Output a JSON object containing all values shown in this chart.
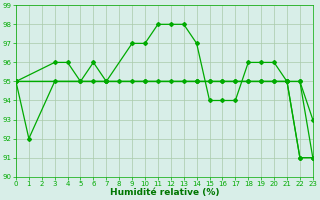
{
  "series": [
    {
      "x": [
        0,
        1,
        3,
        5,
        6,
        7,
        8,
        9,
        10,
        11,
        12,
        13,
        14,
        15,
        16,
        17,
        18,
        19,
        20,
        21,
        22,
        23
      ],
      "y": [
        95,
        92,
        95,
        95,
        95,
        95,
        95,
        95,
        95,
        95,
        95,
        95,
        95,
        95,
        95,
        95,
        95,
        95,
        95,
        95,
        91,
        91
      ]
    },
    {
      "x": [
        0,
        3,
        4,
        5,
        6,
        7,
        9,
        10,
        11,
        12,
        13,
        14,
        15,
        16,
        17,
        18,
        19,
        20,
        21,
        22,
        23
      ],
      "y": [
        95,
        96,
        96,
        95,
        96,
        95,
        97,
        97,
        98,
        98,
        98,
        97,
        94,
        94,
        94,
        96,
        96,
        96,
        95,
        95,
        93
      ]
    },
    {
      "x": [
        0,
        7,
        14,
        21,
        22,
        23
      ],
      "y": [
        95,
        95,
        95,
        95,
        95,
        91
      ]
    },
    {
      "x": [
        0,
        7,
        10,
        14,
        15,
        16,
        17,
        18,
        19,
        20,
        21,
        22,
        23
      ],
      "y": [
        95,
        95,
        95,
        95,
        95,
        95,
        95,
        95,
        95,
        95,
        95,
        91,
        91
      ]
    }
  ],
  "xlim": [
    0,
    23
  ],
  "ylim": [
    90,
    99
  ],
  "yticks": [
    90,
    91,
    92,
    93,
    94,
    95,
    96,
    97,
    98,
    99
  ],
  "xticks": [
    0,
    1,
    2,
    3,
    4,
    5,
    6,
    7,
    8,
    9,
    10,
    11,
    12,
    13,
    14,
    15,
    16,
    17,
    18,
    19,
    20,
    21,
    22,
    23
  ],
  "xlabel": "Humidité relative (%)",
  "xlabel_color": "#007700",
  "xlabel_fontsize": 6.5,
  "tick_fontsize": 5,
  "grid_color": "#aacaaa",
  "background_color": "#d8eee8",
  "line_color": "#00aa00",
  "marker": "D",
  "markersize": 2.0,
  "linewidth": 0.9
}
